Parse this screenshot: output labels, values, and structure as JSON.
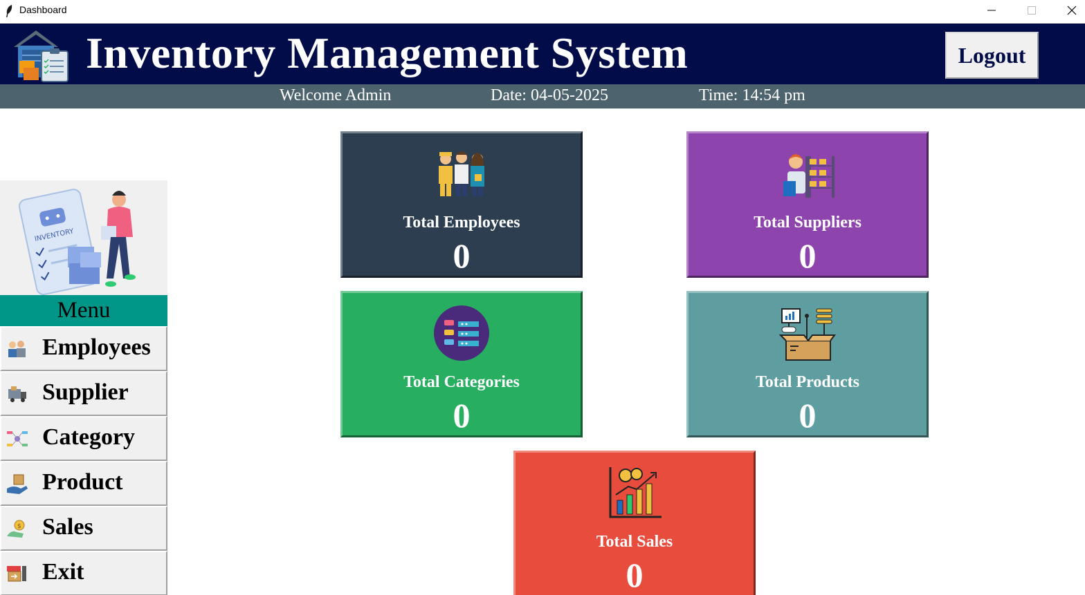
{
  "window": {
    "title": "Dashboard"
  },
  "header": {
    "title": "Inventory Management System",
    "logout_label": "Logout",
    "background": "#010c48"
  },
  "subheader": {
    "welcome": "Welcome Admin",
    "date": "Date: 04-05-2025",
    "time": "Time: 14:54 pm",
    "background": "#4d636d"
  },
  "menu": {
    "header": "Menu",
    "header_color": "#009688",
    "items": [
      {
        "label": "Employees",
        "icon": "employees-icon"
      },
      {
        "label": "Supplier",
        "icon": "supplier-truck-icon"
      },
      {
        "label": "Category",
        "icon": "category-icon"
      },
      {
        "label": "Product",
        "icon": "product-icon"
      },
      {
        "label": "Sales",
        "icon": "sales-icon"
      },
      {
        "label": "Exit",
        "icon": "exit-icon"
      }
    ]
  },
  "cards": [
    {
      "label": "Total Employees",
      "value": "0",
      "color": "#2c3e50",
      "icon": "employees-group-icon"
    },
    {
      "label": "Total Suppliers",
      "value": "0",
      "color": "#8e44ad",
      "icon": "supplier-warehouse-icon"
    },
    {
      "label": "Total Categories",
      "value": "0",
      "color": "#27ae60",
      "icon": "categories-list-icon"
    },
    {
      "label": "Total Products",
      "value": "0",
      "color": "#5f9ea0",
      "icon": "products-box-icon"
    },
    {
      "label": "Total Sales",
      "value": "0",
      "color": "#e74c3c",
      "icon": "sales-chart-icon"
    }
  ]
}
